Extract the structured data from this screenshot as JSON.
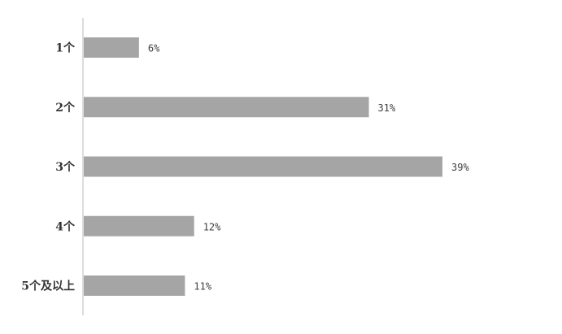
{
  "chart_data": {
    "type": "bar",
    "orientation": "horizontal",
    "categories": [
      "1个",
      "2个",
      "3个",
      "4个",
      "5个及以上"
    ],
    "values": [
      6,
      31,
      39,
      12,
      11
    ],
    "data_labels": [
      "6%",
      "31%",
      "39%",
      "12%",
      "11%"
    ],
    "unit": "%",
    "xlim": [
      0,
      45
    ],
    "grid": false,
    "bar_color": "#a5a5a5"
  }
}
